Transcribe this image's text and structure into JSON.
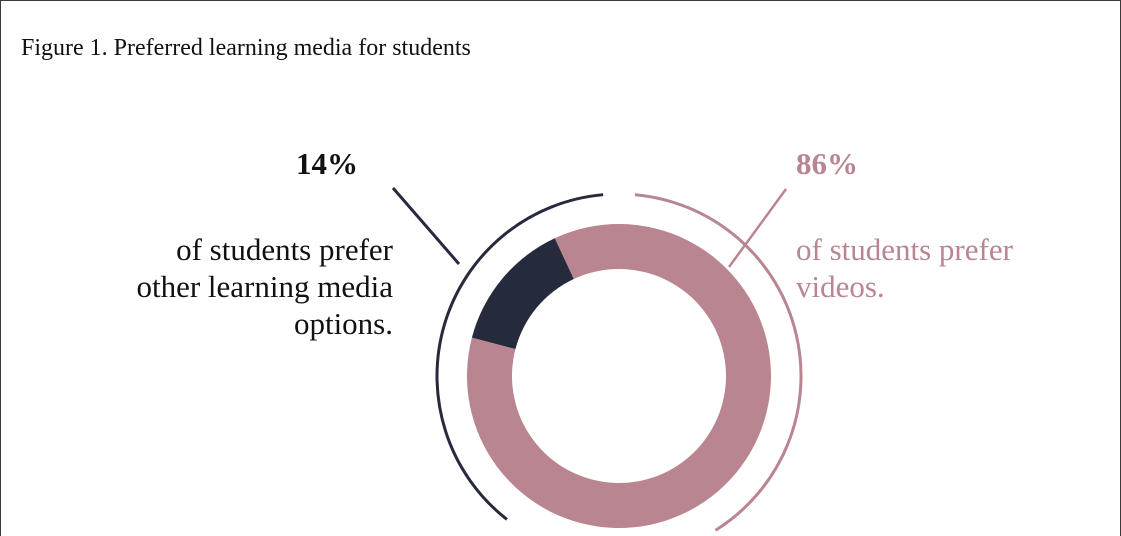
{
  "figure": {
    "title": "Figure 1. Preferred learning media for students"
  },
  "colors": {
    "dark": "#262a3d",
    "rose": "#b98590",
    "text": "#111111"
  },
  "chart_data": {
    "type": "pie",
    "donut": true,
    "title": "Figure 1. Preferred learning media for students",
    "slices": [
      {
        "value": 14,
        "label": "14%",
        "description": "of students prefer\nother learning media\noptions.",
        "color": "#262a3d"
      },
      {
        "value": 86,
        "label": "86%",
        "description": "of students prefer\n videos.",
        "color": "#b98590"
      }
    ]
  }
}
